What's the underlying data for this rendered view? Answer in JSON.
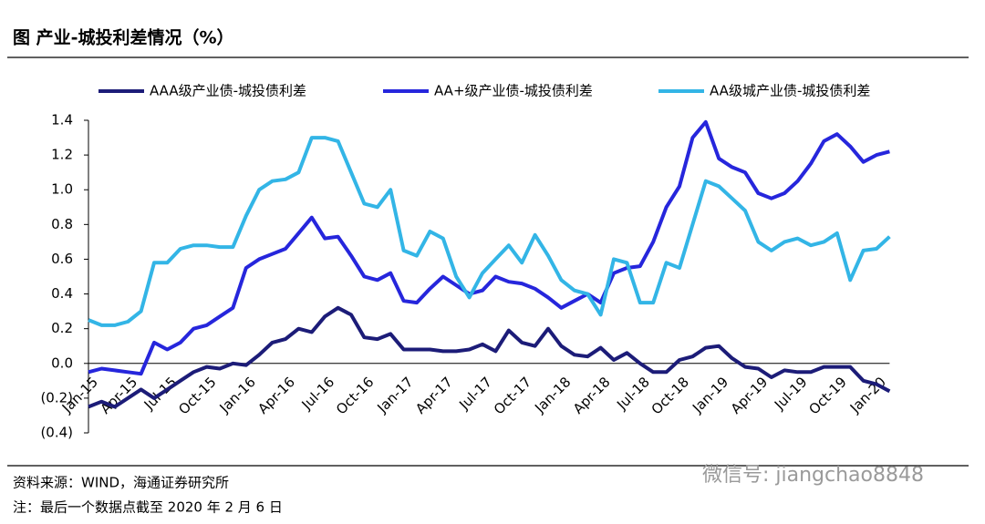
{
  "chart_data": {
    "type": "line",
    "title": "图  产业-城投利差情况（%）",
    "source": "资料来源：WIND，海通证券研究所",
    "note": "注：最后一个数据点截至 2020 年 2 月 6 日",
    "watermark": "微信号: jiangchao8848",
    "categories": [
      "Jan-15",
      null,
      null,
      "Apr-15",
      null,
      null,
      "Jul-15",
      null,
      null,
      "Oct-15",
      null,
      null,
      "Jan-16",
      null,
      null,
      "Apr-16",
      null,
      null,
      "Jul-16",
      null,
      null,
      "Oct-16",
      null,
      null,
      "Jan-17",
      null,
      null,
      "Apr-17",
      null,
      null,
      "Jul-17",
      null,
      null,
      "Oct-17",
      null,
      null,
      "Jan-18",
      null,
      null,
      "Apr-18",
      null,
      null,
      "Jul-18",
      null,
      null,
      "Oct-18",
      null,
      null,
      "Jan-19",
      null,
      null,
      "Apr-19",
      null,
      null,
      "Jul-19",
      null,
      null,
      "Oct-19",
      null,
      null,
      "Jan-20",
      null
    ],
    "series": [
      {
        "name": "AAA级产业债-城投债利差",
        "color": "#1c1c78",
        "values": [
          -0.25,
          -0.22,
          -0.25,
          -0.2,
          -0.15,
          -0.2,
          -0.15,
          -0.1,
          -0.05,
          -0.02,
          -0.03,
          0.0,
          -0.01,
          0.05,
          0.12,
          0.14,
          0.2,
          0.18,
          0.27,
          0.32,
          0.28,
          0.15,
          0.14,
          0.17,
          0.08,
          0.08,
          0.08,
          0.07,
          0.07,
          0.08,
          0.11,
          0.07,
          0.19,
          0.12,
          0.1,
          0.2,
          0.1,
          0.05,
          0.04,
          0.09,
          0.02,
          0.06,
          0.0,
          -0.05,
          -0.05,
          0.02,
          0.04,
          0.09,
          0.1,
          0.03,
          -0.02,
          -0.03,
          -0.08,
          -0.04,
          -0.05,
          -0.05,
          -0.02,
          -0.02,
          -0.02,
          -0.1,
          -0.12,
          -0.16
        ]
      },
      {
        "name": "AA+级产业债-城投债利差",
        "color": "#2626dc",
        "values": [
          -0.05,
          -0.03,
          -0.04,
          -0.05,
          -0.06,
          0.12,
          0.08,
          0.12,
          0.2,
          0.22,
          0.27,
          0.32,
          0.55,
          0.6,
          0.63,
          0.66,
          0.75,
          0.84,
          0.72,
          0.73,
          0.62,
          0.5,
          0.48,
          0.52,
          0.36,
          0.35,
          0.43,
          0.5,
          0.45,
          0.4,
          0.42,
          0.5,
          0.47,
          0.46,
          0.43,
          0.38,
          0.32,
          0.36,
          0.4,
          0.35,
          0.52,
          0.55,
          0.56,
          0.7,
          0.9,
          1.02,
          1.3,
          1.39,
          1.18,
          1.13,
          1.1,
          0.98,
          0.95,
          0.98,
          1.05,
          1.15,
          1.28,
          1.32,
          1.25,
          1.16,
          1.2,
          1.22
        ]
      },
      {
        "name": "AA级城产业债-城投债利差",
        "color": "#33b5e6",
        "values": [
          0.25,
          0.22,
          0.22,
          0.24,
          0.3,
          0.58,
          0.58,
          0.66,
          0.68,
          0.68,
          0.67,
          0.67,
          0.85,
          1.0,
          1.05,
          1.06,
          1.1,
          1.3,
          1.3,
          1.28,
          1.1,
          0.92,
          0.9,
          1.0,
          0.65,
          0.62,
          0.76,
          0.72,
          0.5,
          0.38,
          0.52,
          0.6,
          0.68,
          0.58,
          0.74,
          0.62,
          0.48,
          0.42,
          0.4,
          0.28,
          0.6,
          0.58,
          0.35,
          0.35,
          0.58,
          0.55,
          0.8,
          1.05,
          1.02,
          0.95,
          0.88,
          0.7,
          0.65,
          0.7,
          0.72,
          0.68,
          0.7,
          0.75,
          0.48,
          0.65,
          0.66,
          0.73
        ]
      }
    ],
    "ylim": [
      -0.4,
      1.4
    ],
    "yticks": [
      {
        "value": -0.4,
        "label": "(0.4)"
      },
      {
        "value": -0.2,
        "label": "(0.2)"
      },
      {
        "value": 0,
        "label": "0.0"
      },
      0.2,
      0.4,
      0.6,
      0.8,
      {
        "value": 1,
        "label": "1.0"
      },
      1.2,
      1.4
    ],
    "legend": "top"
  }
}
